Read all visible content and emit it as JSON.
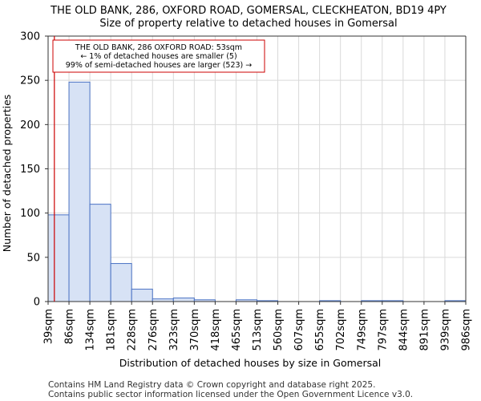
{
  "chart_data": {
    "type": "bar",
    "title": "THE OLD BANK, 286, OXFORD ROAD, GOMERSAL, CLECKHEATON, BD19 4PY",
    "subtitle": "Size of property relative to detached houses in Gomersal",
    "xlabel": "Distribution of detached houses by size in Gomersal",
    "ylabel": "Number of detached properties",
    "ylim": [
      0,
      300
    ],
    "yticks": [
      0,
      50,
      100,
      150,
      200,
      250,
      300
    ],
    "grid": true,
    "bin_edges": [
      "39sqm",
      "86sqm",
      "134sqm",
      "181sqm",
      "228sqm",
      "276sqm",
      "323sqm",
      "370sqm",
      "418sqm",
      "465sqm",
      "513sqm",
      "560sqm",
      "607sqm",
      "655sqm",
      "702sqm",
      "749sqm",
      "797sqm",
      "844sqm",
      "891sqm",
      "939sqm",
      "986sqm"
    ],
    "values": [
      98,
      248,
      110,
      43,
      14,
      3,
      4,
      2,
      0,
      2,
      1,
      0,
      0,
      1,
      0,
      1,
      1,
      0,
      0,
      1
    ],
    "marker_bin_position": 0.3,
    "annotation": [
      "THE OLD BANK, 286 OXFORD ROAD: 53sqm",
      "← 1% of detached houses are smaller (5)",
      "99% of semi-detached houses are larger (523) →"
    ],
    "colors": {
      "bar_fill": "#d7e2f5",
      "bar_edge": "#4a72c4",
      "marker": "#cc0000",
      "grid": "#d9d9d9"
    }
  },
  "footer": [
    "Contains HM Land Registry data © Crown copyright and database right 2025.",
    "Contains public sector information licensed under the Open Government Licence v3.0."
  ]
}
